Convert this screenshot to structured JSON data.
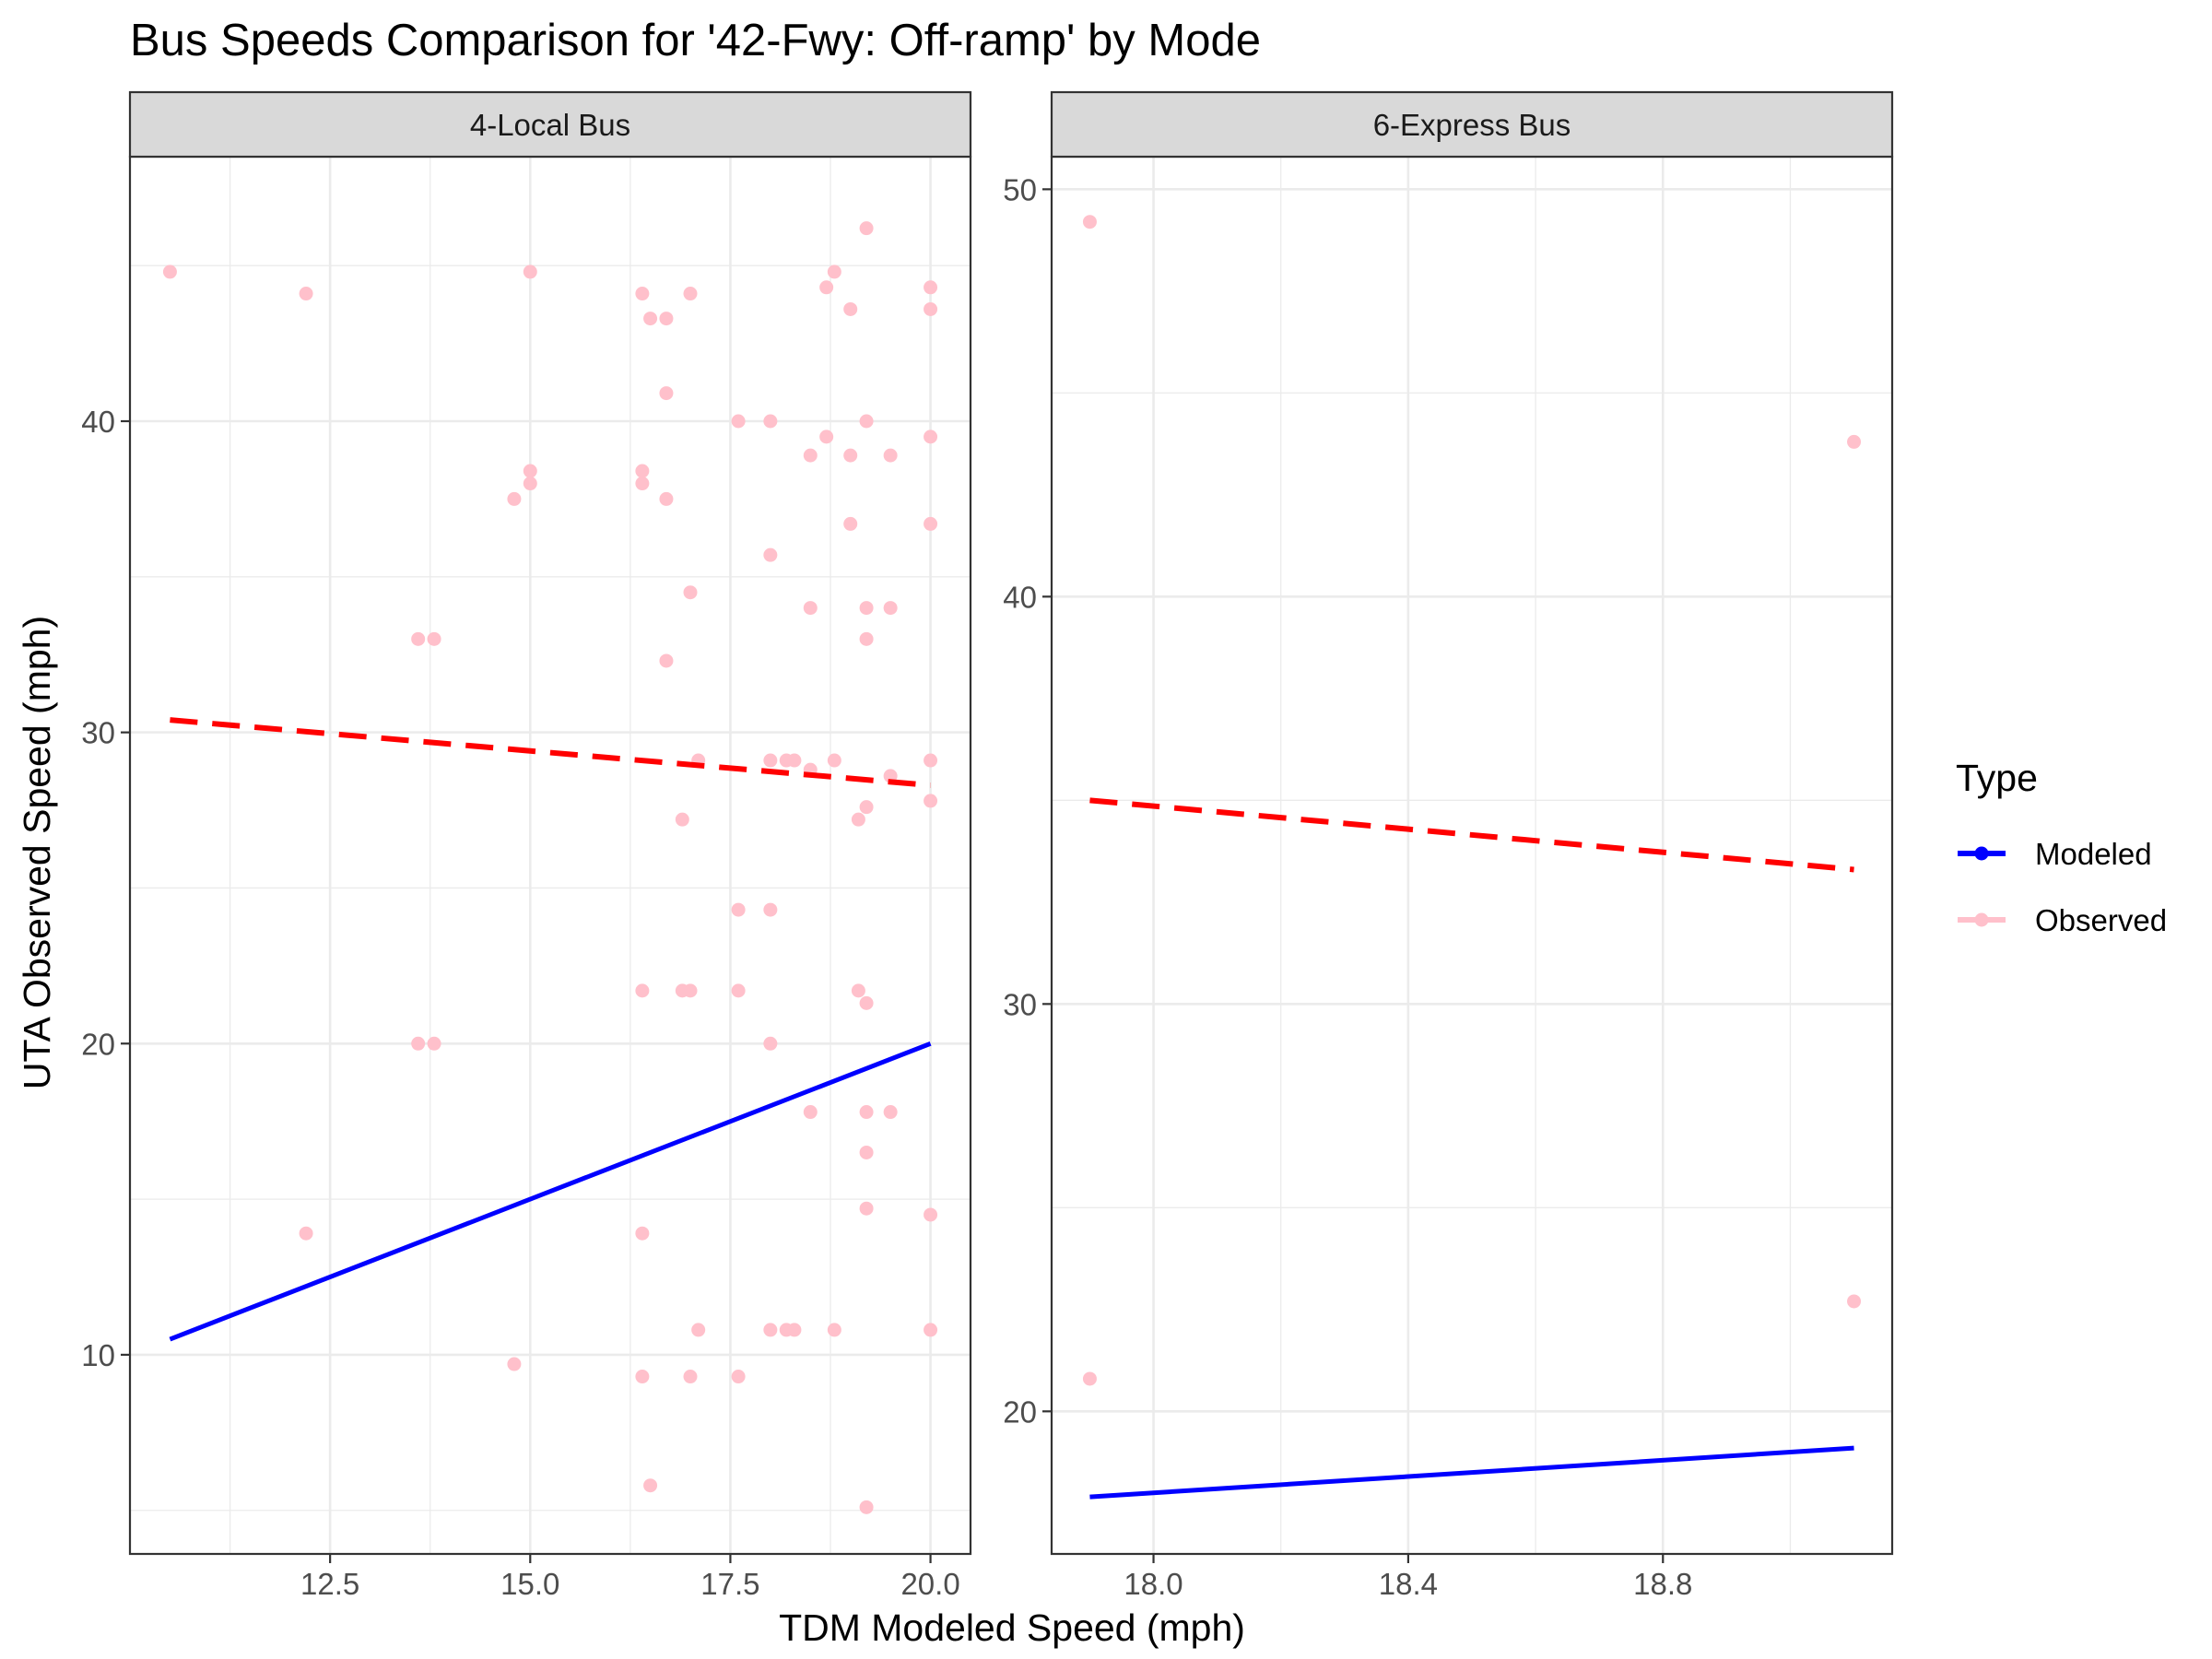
{
  "chart_data": {
    "type": "scatter",
    "title": "Bus Speeds Comparison for '42-Fwy: Off-ramp' by Mode",
    "xlabel": "TDM Modeled Speed (mph)",
    "ylabel": "UTA Observed Speed (mph)",
    "grid": true,
    "legend": {
      "title": "Type",
      "position": "right",
      "entries": [
        {
          "name": "Modeled",
          "color": "#0000ff"
        },
        {
          "name": "Observed",
          "color": "#ffc0cb"
        }
      ]
    },
    "colors": {
      "modeled_line": "#0000ff",
      "observed_points": "#ffc0cb",
      "trend_line": "#ff0000"
    },
    "panels": [
      {
        "label": "4-Local Bus",
        "xlim": [
          10.0,
          20.5
        ],
        "ylim": [
          3.6,
          48.5
        ],
        "x_ticks": [
          12.5,
          15.0,
          17.5,
          20.0
        ],
        "x_tick_labels": [
          "12.5",
          "15.0",
          "17.5",
          "20.0"
        ],
        "y_ticks": [
          10,
          20,
          30,
          40
        ],
        "y_tick_labels": [
          "10",
          "20",
          "30",
          "40"
        ],
        "modeled_line": [
          [
            10.5,
            10.5
          ],
          [
            20.0,
            20.0
          ]
        ],
        "observed_trend": [
          [
            10.5,
            30.4
          ],
          [
            20.0,
            28.3
          ]
        ],
        "observed_points": [
          [
            10.5,
            44.8
          ],
          [
            12.2,
            44.1
          ],
          [
            12.2,
            13.9
          ],
          [
            13.6,
            33.0
          ],
          [
            13.8,
            33.0
          ],
          [
            13.6,
            20.0
          ],
          [
            13.8,
            20.0
          ],
          [
            14.8,
            37.5
          ],
          [
            14.8,
            9.7
          ],
          [
            15.0,
            44.8
          ],
          [
            15.0,
            38.4
          ],
          [
            15.0,
            38.0
          ],
          [
            16.4,
            44.1
          ],
          [
            16.5,
            43.3
          ],
          [
            16.7,
            43.3
          ],
          [
            16.4,
            38.4
          ],
          [
            16.4,
            38.0
          ],
          [
            16.7,
            37.5
          ],
          [
            16.7,
            40.9
          ],
          [
            16.7,
            32.3
          ],
          [
            16.9,
            27.2
          ],
          [
            17.0,
            34.5
          ],
          [
            17.0,
            44.1
          ],
          [
            17.1,
            29.1
          ],
          [
            16.4,
            21.7
          ],
          [
            16.9,
            21.7
          ],
          [
            17.0,
            21.7
          ],
          [
            16.4,
            13.9
          ],
          [
            16.4,
            9.3
          ],
          [
            17.0,
            9.3
          ],
          [
            16.5,
            5.8
          ],
          [
            17.1,
            10.8
          ],
          [
            17.6,
            40.0
          ],
          [
            18.0,
            40.0
          ],
          [
            17.6,
            24.3
          ],
          [
            18.0,
            24.3
          ],
          [
            17.6,
            21.7
          ],
          [
            17.6,
            9.3
          ],
          [
            18.0,
            35.7
          ],
          [
            18.0,
            29.1
          ],
          [
            18.2,
            29.1
          ],
          [
            18.3,
            29.1
          ],
          [
            18.5,
            28.8
          ],
          [
            18.0,
            20.0
          ],
          [
            18.0,
            10.8
          ],
          [
            18.2,
            10.8
          ],
          [
            18.3,
            10.8
          ],
          [
            18.5,
            38.9
          ],
          [
            18.7,
            39.5
          ],
          [
            18.5,
            34.0
          ],
          [
            18.5,
            17.8
          ],
          [
            18.7,
            44.3
          ],
          [
            18.8,
            44.8
          ],
          [
            19.0,
            43.6
          ],
          [
            19.2,
            46.2
          ],
          [
            19.2,
            40.0
          ],
          [
            19.0,
            38.9
          ],
          [
            19.0,
            36.7
          ],
          [
            19.2,
            34.0
          ],
          [
            19.2,
            33.0
          ],
          [
            18.8,
            29.1
          ],
          [
            19.1,
            27.2
          ],
          [
            19.2,
            27.6
          ],
          [
            19.5,
            28.6
          ],
          [
            19.1,
            21.7
          ],
          [
            19.2,
            21.3
          ],
          [
            19.2,
            17.8
          ],
          [
            19.5,
            17.8
          ],
          [
            19.2,
            16.5
          ],
          [
            19.2,
            14.7
          ],
          [
            18.8,
            10.8
          ],
          [
            19.2,
            5.1
          ],
          [
            19.5,
            38.9
          ],
          [
            19.5,
            34.0
          ],
          [
            20.0,
            44.3
          ],
          [
            20.0,
            43.6
          ],
          [
            20.0,
            39.5
          ],
          [
            20.0,
            36.7
          ],
          [
            20.0,
            29.1
          ],
          [
            20.0,
            27.8
          ],
          [
            20.0,
            14.5
          ],
          [
            20.0,
            10.8
          ]
        ]
      },
      {
        "label": "6-Express Bus",
        "xlim": [
          17.84,
          19.16
        ],
        "ylim": [
          16.5,
          50.8
        ],
        "x_ticks": [
          18.0,
          18.4,
          18.8
        ],
        "x_tick_labels": [
          "18.0",
          "18.4",
          "18.8"
        ],
        "y_ticks": [
          20,
          30,
          40,
          50
        ],
        "y_tick_labels": [
          "20",
          "30",
          "40",
          "50"
        ],
        "modeled_line": [
          [
            17.9,
            17.9
          ],
          [
            19.1,
            19.1
          ]
        ],
        "observed_trend": [
          [
            17.9,
            35.0
          ],
          [
            19.1,
            33.3
          ]
        ],
        "observed_points": [
          [
            17.9,
            49.2
          ],
          [
            17.9,
            20.8
          ],
          [
            19.1,
            43.8
          ],
          [
            19.1,
            22.7
          ]
        ]
      }
    ]
  }
}
